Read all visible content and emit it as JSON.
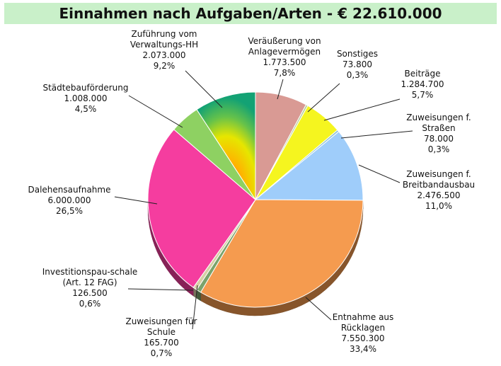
{
  "chart_data": {
    "type": "pie",
    "title": "Einnahmen nach Aufgaben/Arten - € 22.610.000",
    "slices": [
      {
        "lines": [
          "Veräußerung von",
          "Anlagevermögen"
        ],
        "value": "1.773.500",
        "percent": "7,8%",
        "share": 7.8,
        "color": "#d99a94"
      },
      {
        "lines": [
          "Sonstiges"
        ],
        "value": "73.800",
        "percent": "0,3%",
        "share": 0.3,
        "color": "#b8cf9a"
      },
      {
        "lines": [
          "Beiträge"
        ],
        "value": "1.284.700",
        "percent": "5,7%",
        "share": 5.7,
        "color": "#f5f51f"
      },
      {
        "lines": [
          "Zuweisungen f.",
          "Straßen"
        ],
        "value": "78.000",
        "percent": "0,3%",
        "share": 0.3,
        "color": "#8fc1d6"
      },
      {
        "lines": [
          "Zuweisungen f.",
          "Breitbandausbau"
        ],
        "value": "2.476.500",
        "percent": "11,0%",
        "share": 11.0,
        "color": "#9fcdfa"
      },
      {
        "lines": [
          "Entnahme aus",
          "Rücklagen"
        ],
        "value": "7.550.300",
        "percent": "33,4%",
        "share": 33.4,
        "color": "#f59b4f"
      },
      {
        "lines": [
          "Zuweisungen für",
          "Schule"
        ],
        "value": "165.700",
        "percent": "0,7%",
        "share": 0.7,
        "color": "#7aa36b"
      },
      {
        "lines": [
          "Investitionspau-schale",
          "(Art. 12 FAG)"
        ],
        "value": "126.500",
        "percent": "0,6%",
        "share": 0.6,
        "color": "#d6cfa5"
      },
      {
        "lines": [
          "Dalehensaufnahme"
        ],
        "value": "6.000.000",
        "percent": "26,5%",
        "share": 26.5,
        "color": "#f53d9f"
      },
      {
        "lines": [
          "Städtebauförderung"
        ],
        "value": "1.008.000",
        "percent": "4,5%",
        "share": 4.5,
        "color": "#8ed162"
      },
      {
        "lines": [
          "Zuführung vom",
          "Verwaltungs-HH"
        ],
        "value": "2.073.000",
        "percent": "9,2%",
        "share": 9.2,
        "color": "#f2c01d"
      }
    ]
  }
}
